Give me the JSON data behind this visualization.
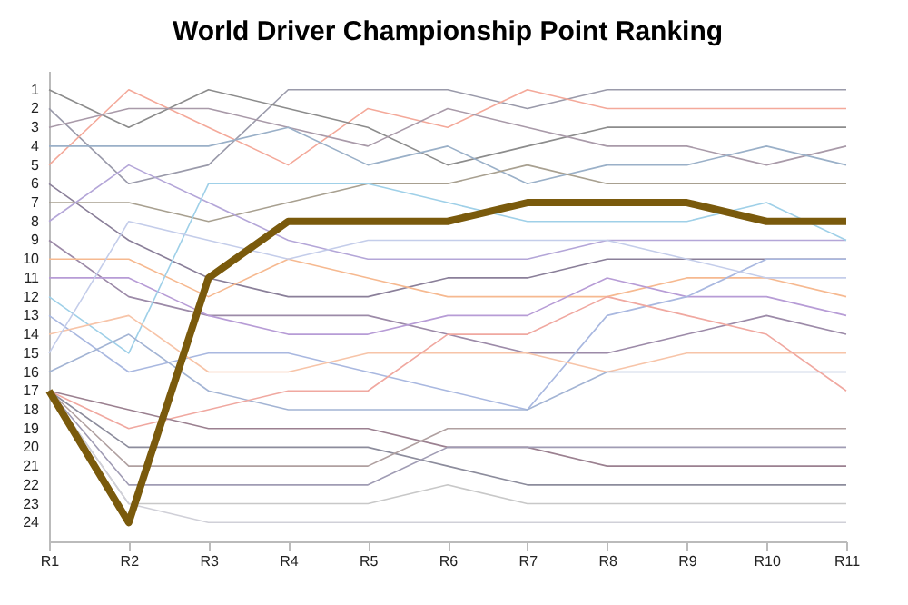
{
  "chart_data": {
    "type": "line",
    "title": "World Driver Championship Point Ranking",
    "categories": [
      "R1",
      "R2",
      "R3",
      "R4",
      "R5",
      "R6",
      "R7",
      "R8",
      "R9",
      "R10",
      "R11"
    ],
    "ylim": [
      25,
      0
    ],
    "yticks": [
      1,
      2,
      3,
      4,
      5,
      6,
      7,
      8,
      9,
      10,
      11,
      12,
      13,
      14,
      15,
      16,
      17,
      18,
      19,
      20,
      21,
      22,
      23,
      24
    ],
    "series": [
      {
        "color": "#9a9aaa",
        "values": [
          2,
          6,
          5,
          1,
          1,
          1,
          2,
          1,
          1,
          1,
          1
        ]
      },
      {
        "color": "#f4a99a",
        "values": [
          5,
          1,
          3,
          5,
          2,
          3,
          1,
          2,
          2,
          2,
          2
        ]
      },
      {
        "color": "#8c8c8c",
        "values": [
          1,
          3,
          1,
          2,
          3,
          5,
          4,
          3,
          3,
          3,
          3
        ]
      },
      {
        "color": "#a99aa9",
        "values": [
          3,
          2,
          2,
          3,
          4,
          2,
          3,
          4,
          4,
          5,
          4
        ]
      },
      {
        "color": "#9ab0c8",
        "values": [
          4,
          4,
          4,
          3,
          5,
          4,
          6,
          5,
          5,
          4,
          5
        ]
      },
      {
        "color": "#8a7f99",
        "values": [
          6,
          9,
          11,
          12,
          12,
          11,
          11,
          10,
          10,
          10,
          10
        ]
      },
      {
        "color": "#a8a090",
        "values": [
          7,
          7,
          8,
          7,
          6,
          6,
          5,
          6,
          6,
          6,
          6
        ]
      },
      {
        "color": "#b4a6d8",
        "values": [
          8,
          5,
          7,
          9,
          10,
          10,
          10,
          9,
          9,
          9,
          9
        ]
      },
      {
        "color": "#9c8aa8",
        "values": [
          9,
          12,
          13,
          13,
          13,
          14,
          15,
          15,
          14,
          13,
          14
        ]
      },
      {
        "color": "#f6b990",
        "values": [
          10,
          10,
          12,
          10,
          11,
          12,
          12,
          12,
          11,
          11,
          12
        ]
      },
      {
        "color": "#b79cd6",
        "values": [
          11,
          11,
          13,
          14,
          14,
          13,
          13,
          11,
          12,
          12,
          13
        ]
      },
      {
        "color": "#9fd0e8",
        "values": [
          12,
          15,
          6,
          6,
          6,
          7,
          8,
          8,
          8,
          7,
          9
        ]
      },
      {
        "color": "#a9b8e0",
        "values": [
          13,
          16,
          15,
          15,
          16,
          17,
          18,
          13,
          12,
          10,
          10
        ]
      },
      {
        "color": "#f7c4a8",
        "values": [
          14,
          13,
          16,
          16,
          15,
          15,
          15,
          16,
          15,
          15,
          15
        ]
      },
      {
        "color": "#c4cdea",
        "values": [
          15,
          8,
          9,
          10,
          9,
          9,
          9,
          9,
          10,
          11,
          11
        ]
      },
      {
        "color": "#a3b4d4",
        "values": [
          16,
          14,
          17,
          18,
          18,
          18,
          18,
          16,
          16,
          16,
          16
        ]
      },
      {
        "color": "#f0a8a0",
        "values": [
          17,
          19,
          18,
          17,
          17,
          14,
          14,
          12,
          13,
          14,
          17
        ]
      },
      {
        "color": "#9b8090",
        "values": [
          17,
          18,
          19,
          19,
          19,
          20,
          20,
          21,
          21,
          21,
          21
        ]
      },
      {
        "color": "#8c8c9c",
        "values": [
          17,
          20,
          20,
          20,
          20,
          21,
          22,
          22,
          22,
          22,
          22
        ]
      },
      {
        "color": "#b0a0a0",
        "values": [
          17,
          21,
          21,
          21,
          21,
          19,
          19,
          19,
          19,
          19,
          19
        ]
      },
      {
        "color": "#a09cb4",
        "values": [
          17,
          22,
          22,
          22,
          22,
          20,
          20,
          20,
          20,
          20,
          20
        ]
      },
      {
        "color": "#c8c8c8",
        "values": [
          17,
          23,
          23,
          23,
          23,
          22,
          23,
          23,
          23,
          23,
          23
        ]
      },
      {
        "color": "#d0d0d8",
        "values": [
          17,
          23,
          24,
          24,
          24,
          24,
          24,
          24,
          24,
          24,
          24
        ]
      },
      {
        "color": "#7a5a0c",
        "values": [
          17,
          24,
          11,
          8,
          8,
          8,
          7,
          7,
          7,
          8,
          8
        ]
      }
    ]
  }
}
